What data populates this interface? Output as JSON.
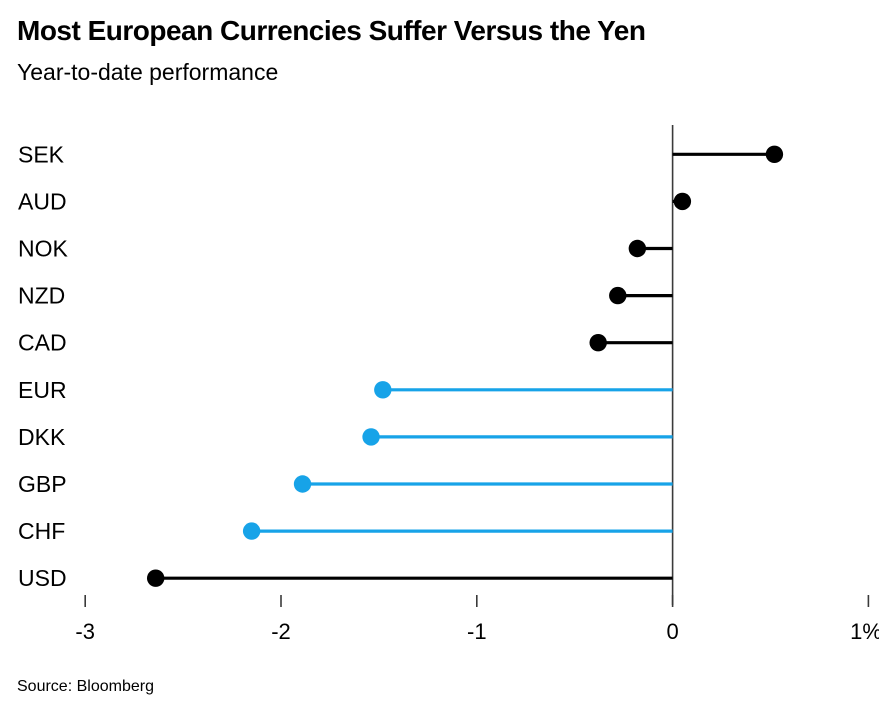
{
  "header": {
    "title": "Most European Currencies Suffer Versus the Yen",
    "subtitle": "Year-to-date performance"
  },
  "footer": {
    "source": "Source: Bloomberg"
  },
  "colors": {
    "default_series": "#000000",
    "european_highlight": "#17a3e8",
    "axis_line": "#3a3a3a",
    "tick_mark": "#3a3a3a",
    "text": "#000000",
    "background": "#ffffff"
  },
  "chart_data": {
    "type": "bar",
    "subtype": "horizontal-lollipop",
    "title": "Most European Currencies Suffer Versus the Yen",
    "subtitle": "Year-to-date performance",
    "xlabel": "",
    "ylabel": "",
    "unit": "%",
    "categories": [
      "SEK",
      "AUD",
      "NOK",
      "NZD",
      "CAD",
      "EUR",
      "DKK",
      "GBP",
      "CHF",
      "USD"
    ],
    "values": [
      0.52,
      0.05,
      -0.18,
      -0.28,
      -0.38,
      -1.48,
      -1.54,
      -1.89,
      -2.15,
      -2.64
    ],
    "point_colors": [
      "#000000",
      "#000000",
      "#000000",
      "#000000",
      "#000000",
      "#17a3e8",
      "#17a3e8",
      "#17a3e8",
      "#17a3e8",
      "#000000"
    ],
    "baseline": 0,
    "xlim": [
      -3.3,
      1.05
    ],
    "xticks": [
      -3,
      -2,
      -1,
      0,
      1
    ],
    "xtick_labels": [
      "-3",
      "-2",
      "-1",
      "0",
      "1%"
    ],
    "grid": false,
    "legend": false,
    "source": "Source: Bloomberg"
  }
}
